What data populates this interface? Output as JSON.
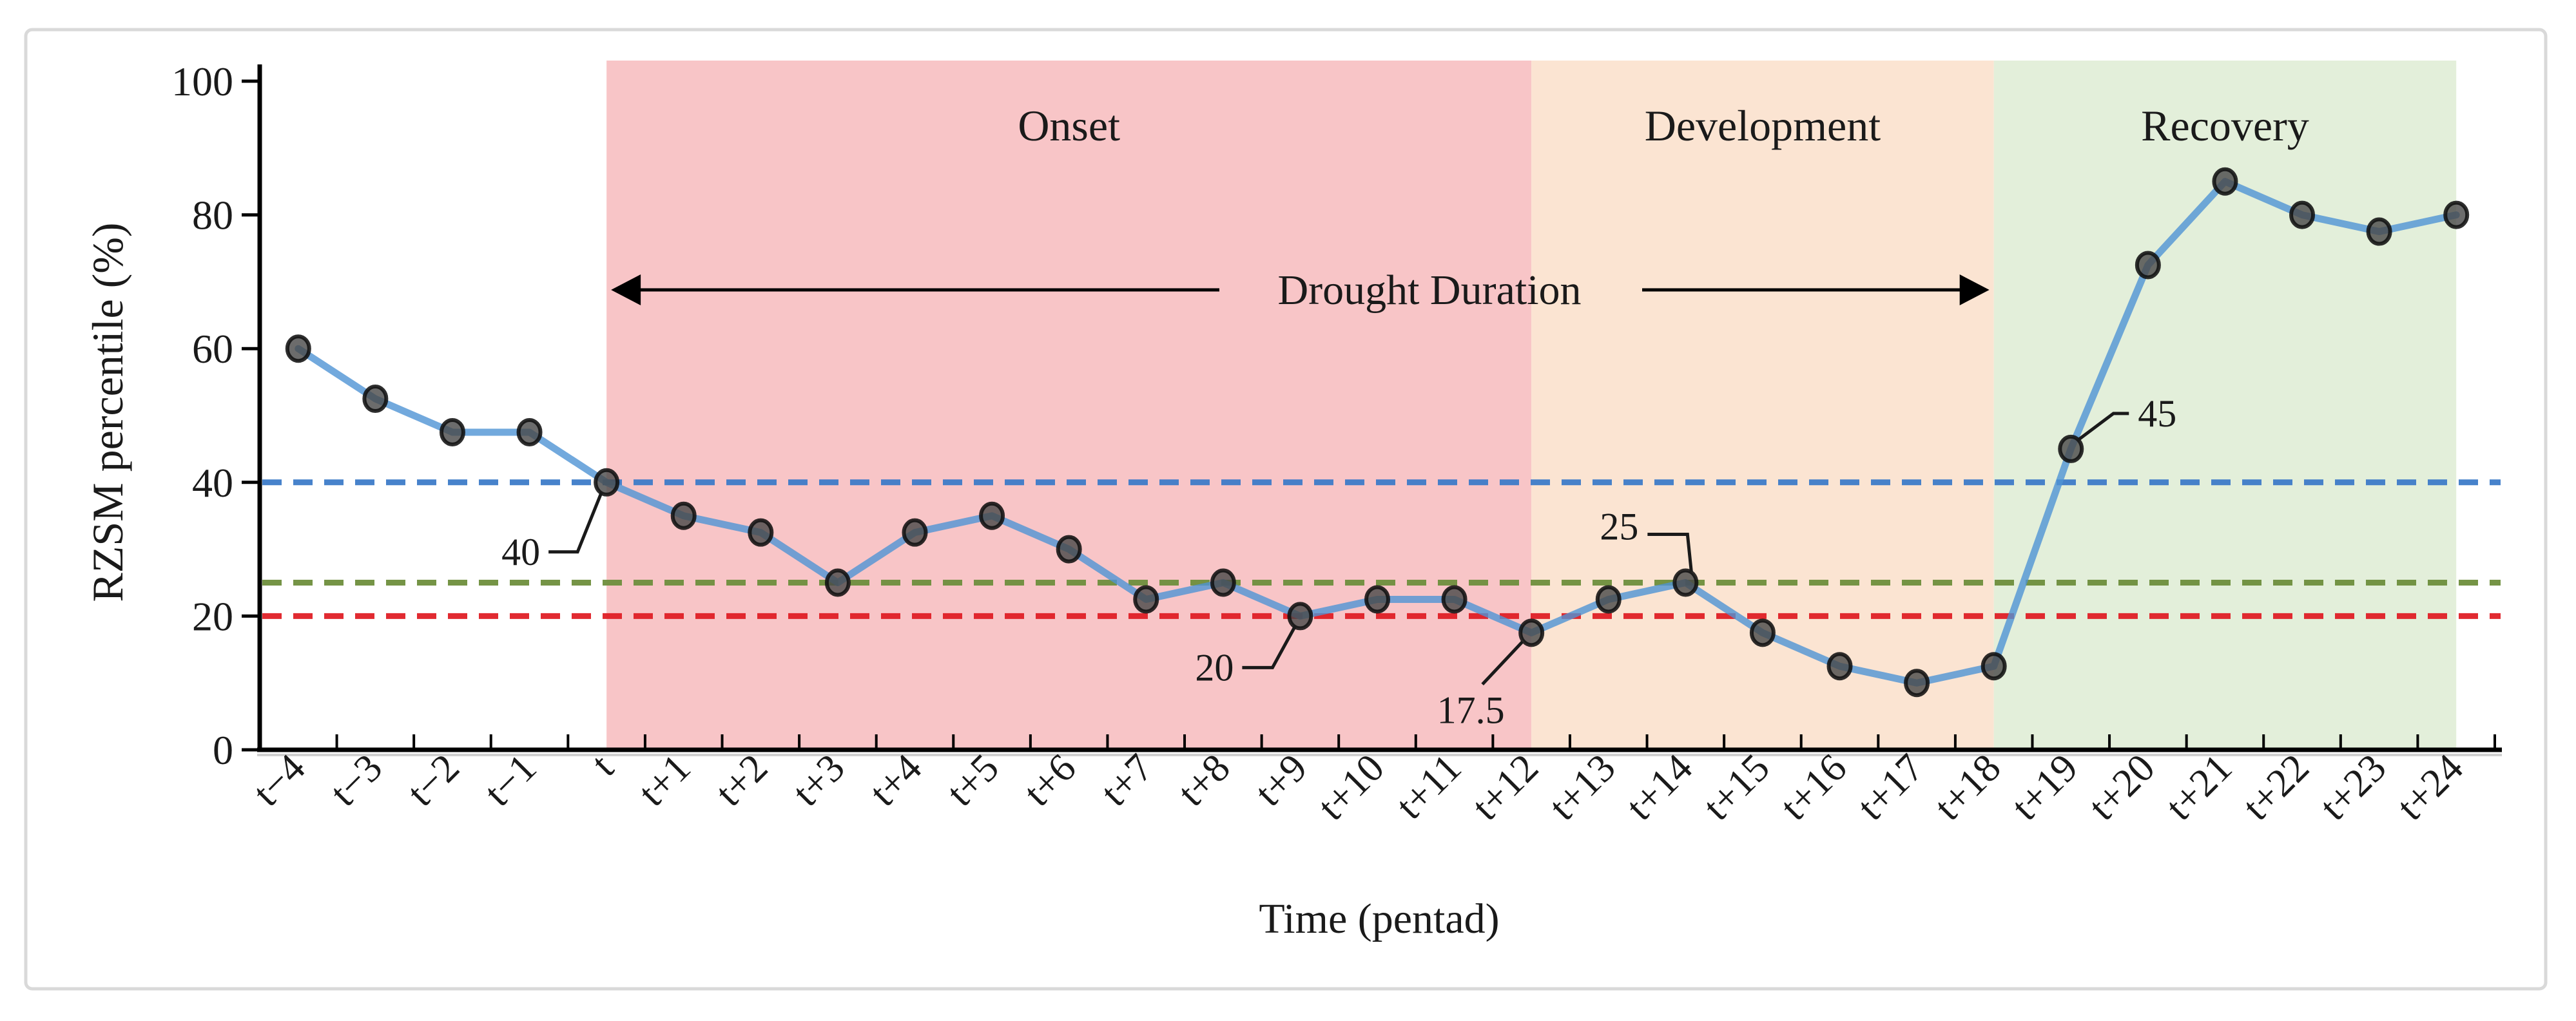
{
  "chart_data": {
    "type": "line",
    "title": "",
    "xlabel": "Time (pentad)",
    "ylabel": "RZSM percentile (%)",
    "ylim": [
      0,
      100
    ],
    "yticks": [
      0,
      20,
      40,
      60,
      80,
      100
    ],
    "grid": false,
    "legend": "none",
    "categories": [
      "t−4",
      "t−3",
      "t−2",
      "t−1",
      "t",
      "t+1",
      "t+2",
      "t+3",
      "t+4",
      "t+5",
      "t+6",
      "t+7",
      "t+8",
      "t+9",
      "t+10",
      "t+11",
      "t+12",
      "t+13",
      "t+14",
      "t+15",
      "t+16",
      "t+17",
      "t+18",
      "t+19",
      "t+20",
      "t+21",
      "t+22",
      "t+23",
      "t+24"
    ],
    "series": [
      {
        "name": "RZSM percentile",
        "color": "#4f93d4",
        "marker_color": "#474747",
        "values": [
          60,
          52.5,
          47.5,
          47.5,
          40,
          35,
          32.5,
          25,
          32.5,
          35,
          30,
          22.5,
          25,
          20,
          22.5,
          22.5,
          17.5,
          22.5,
          25,
          17.5,
          12.5,
          10,
          12.5,
          45,
          72.5,
          85,
          80,
          77.5,
          80
        ]
      }
    ],
    "reference_lines": [
      {
        "value": 40,
        "color": "#3e7cc9",
        "style": "dashed"
      },
      {
        "value": 25,
        "color": "#6e8f3d",
        "style": "dashed"
      },
      {
        "value": 20,
        "color": "#e01f26",
        "style": "dashed"
      }
    ],
    "bands": [
      {
        "label": "Onset",
        "from_category": "t",
        "to_category": "t+12",
        "color": "#f8c5c7"
      },
      {
        "label": "Development",
        "from_category": "t+12",
        "to_category": "t+18",
        "color": "#fbe4d2"
      },
      {
        "label": "Recovery",
        "from_category": "t+18",
        "to_category": "t+24",
        "color": "#e3efda"
      }
    ],
    "annotations": [
      {
        "label": "40",
        "category": "t",
        "value": 40
      },
      {
        "label": "20",
        "category": "t+9",
        "value": 20
      },
      {
        "label": "17.5",
        "category": "t+12",
        "value": 17.5
      },
      {
        "label": "25",
        "category": "t+14",
        "value": 25
      },
      {
        "label": "45",
        "category": "t+19",
        "value": 45
      }
    ],
    "arrow": {
      "label": "Drought Duration",
      "from_category": "t",
      "to_category": "t+18"
    }
  }
}
